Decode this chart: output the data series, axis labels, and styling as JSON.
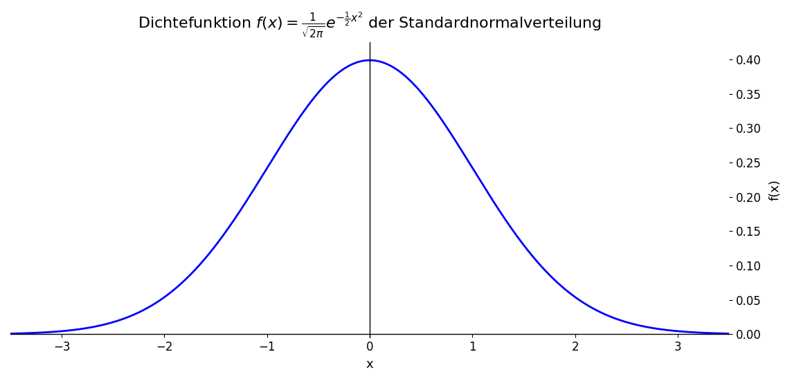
{
  "title": "Dichtefunktion $f(x) = \\frac{1}{\\sqrt{2\\pi}}e^{-\\frac{1}{2}x^2}$ der Standardnormalverteilung",
  "xlabel": "x",
  "ylabel": "f(x)",
  "xlim": [
    -3.5,
    3.5
  ],
  "ylim": [
    -0.005,
    0.425
  ],
  "xticks": [
    -3,
    -2,
    -1,
    0,
    1,
    2,
    3
  ],
  "yticks": [
    0.0,
    0.05,
    0.1,
    0.15,
    0.2,
    0.25,
    0.3,
    0.35,
    0.4
  ],
  "line_color": "blue",
  "line_width": 2.0,
  "background_color": "#ffffff",
  "title_fontsize": 16,
  "axis_label_fontsize": 13,
  "tick_fontsize": 12
}
